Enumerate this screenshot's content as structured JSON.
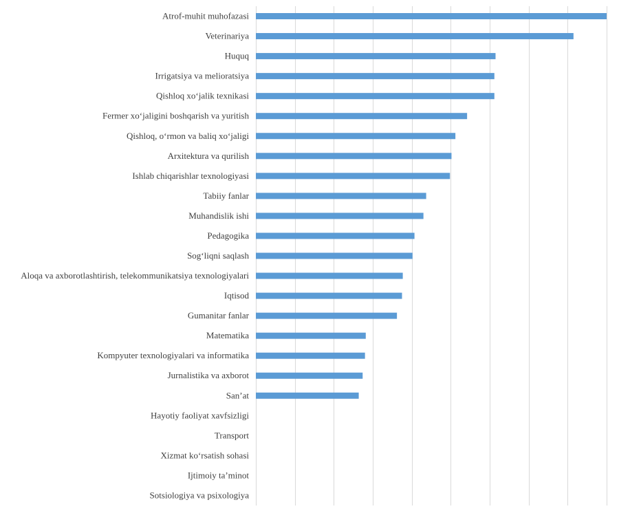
{
  "chart_data": {
    "type": "bar",
    "orientation": "horizontal",
    "title": "",
    "xlabel": "",
    "ylabel": "",
    "xlim": [
      0,
      9
    ],
    "gridlines": "vertical",
    "legend": "none",
    "bar_color": "#5b9bd5",
    "categories": [
      "Atrof-muhit muhofazasi",
      "Veterinariya",
      "Huquq",
      "Irrigatsiya va melioratsiya",
      "Qishloq xo‘jalik texnikasi",
      "Fermer xo‘jaligini boshqarish va yuritish",
      "Qishloq, o‘rmon va baliq xo‘jaligi",
      "Arxitektura va qurilish",
      "Ishlab chiqarishlar texnologiyasi",
      "Tabiiy fanlar",
      "Muhandislik ishi",
      "Pedagogika",
      "Sog‘liqni saqlash",
      "Aloqa va axborotlashtirish, telekommunikatsiya texnologiyalari",
      "Iqtisod",
      "Gumanitar fanlar",
      "Matematika",
      "Kompyuter texnologiyalari va informatika",
      "Jurnalistika va axborot",
      "San’at",
      "Hayotiy faoliyat xavfsizligi",
      "Transport",
      "Xizmat ko‘rsatish sohasi",
      "Ijtimoiy ta’minot",
      "Sotsiologiya va psixologiya"
    ],
    "values": [
      9.0,
      8.15,
      6.15,
      6.12,
      6.12,
      5.42,
      5.12,
      5.02,
      4.98,
      4.37,
      4.3,
      4.07,
      4.02,
      3.77,
      3.75,
      3.62,
      2.82,
      2.8,
      2.74,
      2.64,
      0,
      0,
      0,
      0,
      0
    ]
  }
}
